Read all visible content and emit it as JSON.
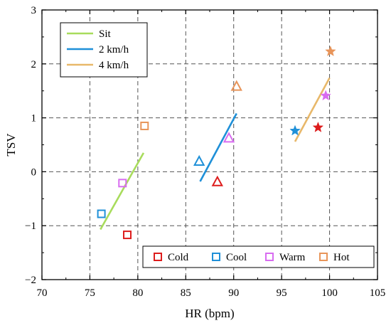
{
  "chart_data": {
    "type": "scatter",
    "xlabel": "HR (bpm)",
    "ylabel": "TSV",
    "xlim": [
      70,
      105
    ],
    "ylim": [
      -2,
      3
    ],
    "x_ticks": [
      "70",
      "75",
      "80",
      "85",
      "90",
      "95",
      "100",
      "105"
    ],
    "y_ticks": [
      "−2",
      "−1",
      "0",
      "1",
      "2",
      "3"
    ],
    "grid": "dashed",
    "trend_lines": [
      {
        "name": "Sit",
        "color": "#a8dc5c",
        "x": [
          76.1,
          80.6
        ],
        "y": [
          -1.07,
          0.35
        ]
      },
      {
        "name": "2 km/h",
        "color": "#1f90d8",
        "x": [
          86.5,
          90.3
        ],
        "y": [
          -0.18,
          1.08
        ]
      },
      {
        "name": "4 km/h",
        "color": "#e8b86a",
        "x": [
          96.4,
          100.0
        ],
        "y": [
          0.56,
          1.74
        ]
      }
    ],
    "conditions": [
      {
        "name": "Cold",
        "color": "#dd1c1c"
      },
      {
        "name": "Cool",
        "color": "#1f90d8"
      },
      {
        "name": "Warm",
        "color": "#d86cf0"
      },
      {
        "name": "Hot",
        "color": "#e8955a"
      }
    ],
    "points": [
      {
        "activity": "Sit",
        "condition": "Cold",
        "marker": "square",
        "x": 78.9,
        "y": -1.17
      },
      {
        "activity": "Sit",
        "condition": "Cool",
        "marker": "square",
        "x": 76.2,
        "y": -0.78
      },
      {
        "activity": "Sit",
        "condition": "Warm",
        "marker": "square",
        "x": 78.4,
        "y": -0.21
      },
      {
        "activity": "Sit",
        "condition": "Hot",
        "marker": "square",
        "x": 80.7,
        "y": 0.85
      },
      {
        "activity": "2 km/h",
        "condition": "Cold",
        "marker": "triangle",
        "x": 88.3,
        "y": -0.19
      },
      {
        "activity": "2 km/h",
        "condition": "Cool",
        "marker": "triangle",
        "x": 86.4,
        "y": 0.19
      },
      {
        "activity": "2 km/h",
        "condition": "Warm",
        "marker": "triangle",
        "x": 89.5,
        "y": 0.62
      },
      {
        "activity": "2 km/h",
        "condition": "Hot",
        "marker": "triangle",
        "x": 90.3,
        "y": 1.58
      },
      {
        "activity": "4 km/h",
        "condition": "Cold",
        "marker": "star",
        "x": 98.8,
        "y": 0.82
      },
      {
        "activity": "4 km/h",
        "condition": "Cool",
        "marker": "star",
        "x": 96.4,
        "y": 0.76
      },
      {
        "activity": "4 km/h",
        "condition": "Warm",
        "marker": "star",
        "x": 99.6,
        "y": 1.41
      },
      {
        "activity": "4 km/h",
        "condition": "Hot",
        "marker": "star",
        "x": 100.1,
        "y": 2.23
      }
    ],
    "legend_activity": {
      "placement": "top-left",
      "entries": [
        "Sit",
        "2 km/h",
        "4 km/h"
      ]
    },
    "legend_condition": {
      "placement": "bottom-right",
      "entries": [
        "Cold",
        "Cool",
        "Warm",
        "Hot"
      ]
    }
  }
}
